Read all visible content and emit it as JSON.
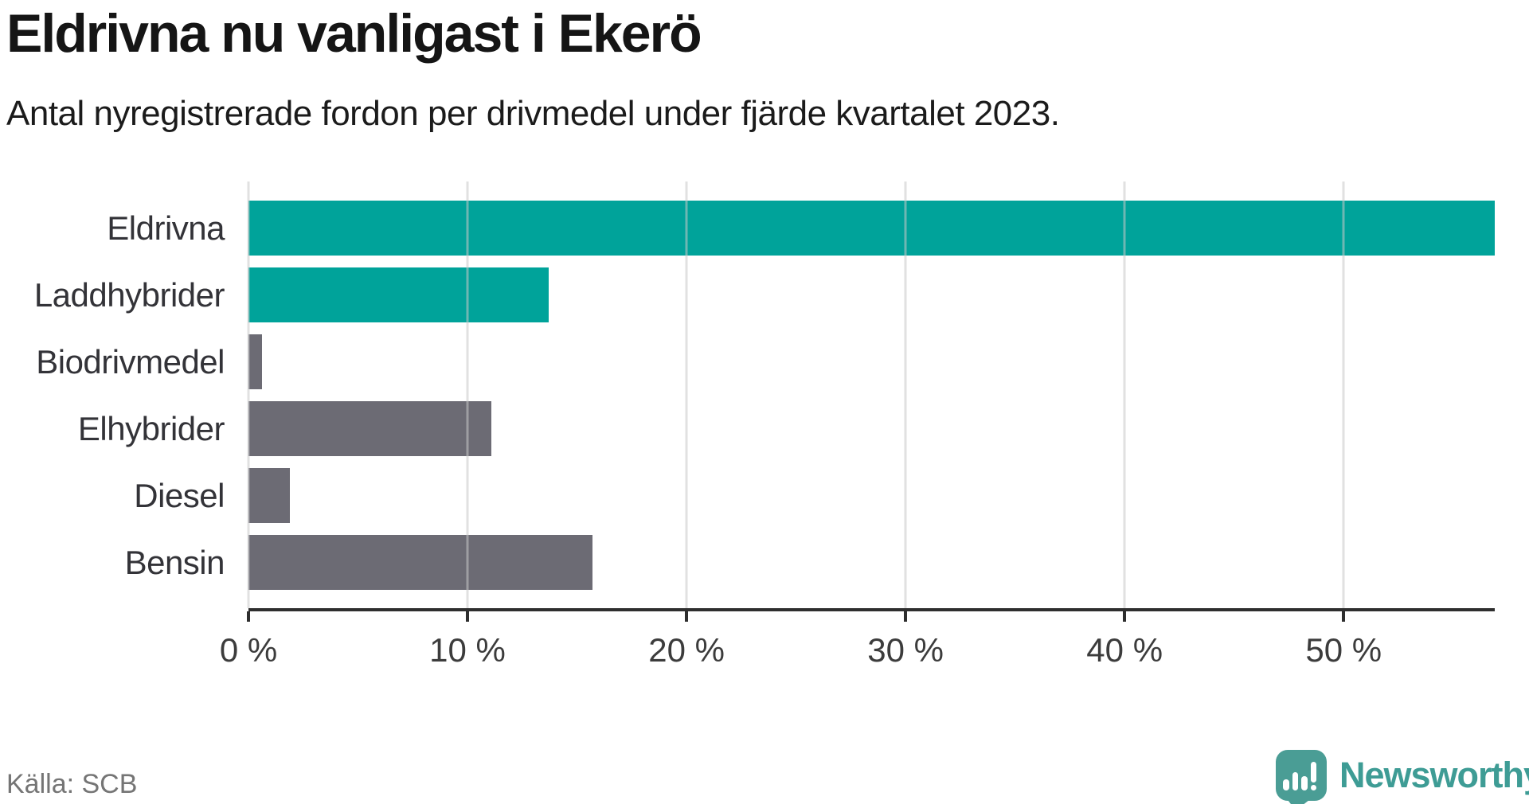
{
  "header": {
    "title": "Eldrivna nu vanligast i Ekerö",
    "subtitle": "Antal nyregistrerade fordon per drivmedel under fjärde kvartalet 2023."
  },
  "chart_data": {
    "type": "bar",
    "orientation": "horizontal",
    "title": "Eldrivna nu vanligast i Ekerö",
    "subtitle": "Antal nyregistrerade fordon per drivmedel under fjärde kvartalet 2023.",
    "categories": [
      "Eldrivna",
      "Laddhybrider",
      "Biodrivmedel",
      "Elhybrider",
      "Diesel",
      "Bensin"
    ],
    "values": [
      56.9,
      13.7,
      0.6,
      11.1,
      1.9,
      15.7
    ],
    "unit": "%",
    "bar_colors": [
      "#00A39A",
      "#00A39A",
      "#6C6B74",
      "#6C6B74",
      "#6C6B74",
      "#6C6B74"
    ],
    "xlabel": "",
    "ylabel": "",
    "xlim": [
      0,
      56.9
    ],
    "xticks": [
      {
        "value": 0,
        "label": "0 %"
      },
      {
        "value": 10,
        "label": "10 %"
      },
      {
        "value": 20,
        "label": "20 %"
      },
      {
        "value": 30,
        "label": "30 %"
      },
      {
        "value": 40,
        "label": "40 %"
      },
      {
        "value": 50,
        "label": "50 %"
      }
    ],
    "grid": "vertical gridlines drawn over bars",
    "legend": "none"
  },
  "colors": {
    "bar_teal": "#00A39A",
    "bar_gray": "#6C6B74",
    "axis": "#2e2e2e",
    "gridline": "#c8c8c8",
    "brand_teal": "#4A9D95",
    "brand_text": "#3E9C95",
    "source_text": "#757575"
  },
  "footer": {
    "source": "Källa: SCB",
    "brand": "Newsworthy",
    "brand_icon": "newsworthy-speech-bubble-chart-icon"
  }
}
